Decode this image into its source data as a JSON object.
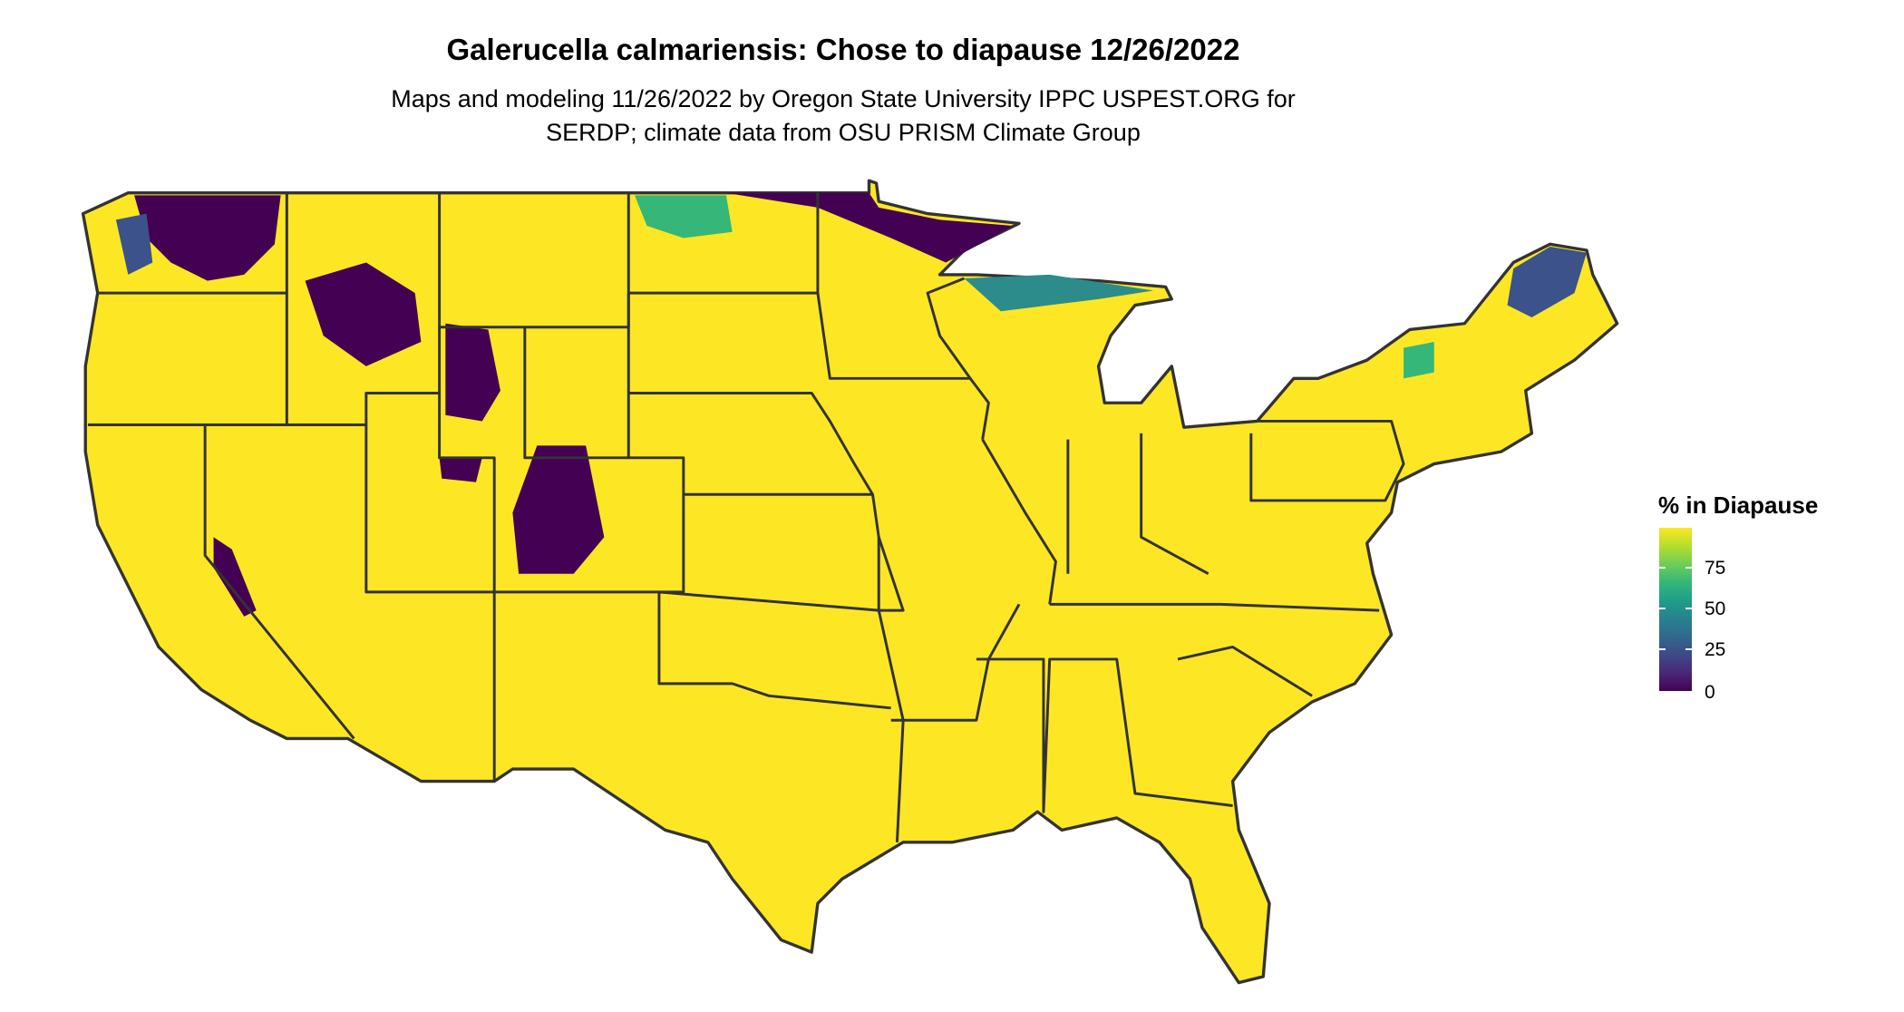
{
  "title": "Galerucella calmariensis: Chose to diapause 12/26/2022",
  "subtitle_line1": "Maps and modeling 11/26/2022 by Oregon State University IPPC USPEST.ORG for",
  "subtitle_line2": "SERDP; climate data from OSU PRISM Climate Group",
  "legend": {
    "title": "% in Diapause",
    "ticks": [
      "75",
      "50",
      "25",
      "0"
    ],
    "range": [
      0,
      100
    ],
    "colormap": "viridis",
    "low_color": "#440154",
    "high_color": "#fde725"
  },
  "map": {
    "region": "Contiguous United States",
    "state_border_color": "#333333",
    "dominant_value_color": "#fde725",
    "low_diapause_regions": [
      "Northern Rockies",
      "Wyoming/Colorado mountains",
      "Cascades",
      "Sierra Nevada",
      "Northern Minnesota",
      "Upper Peninsula Michigan",
      "Northern Maine",
      "Adirondacks"
    ]
  }
}
